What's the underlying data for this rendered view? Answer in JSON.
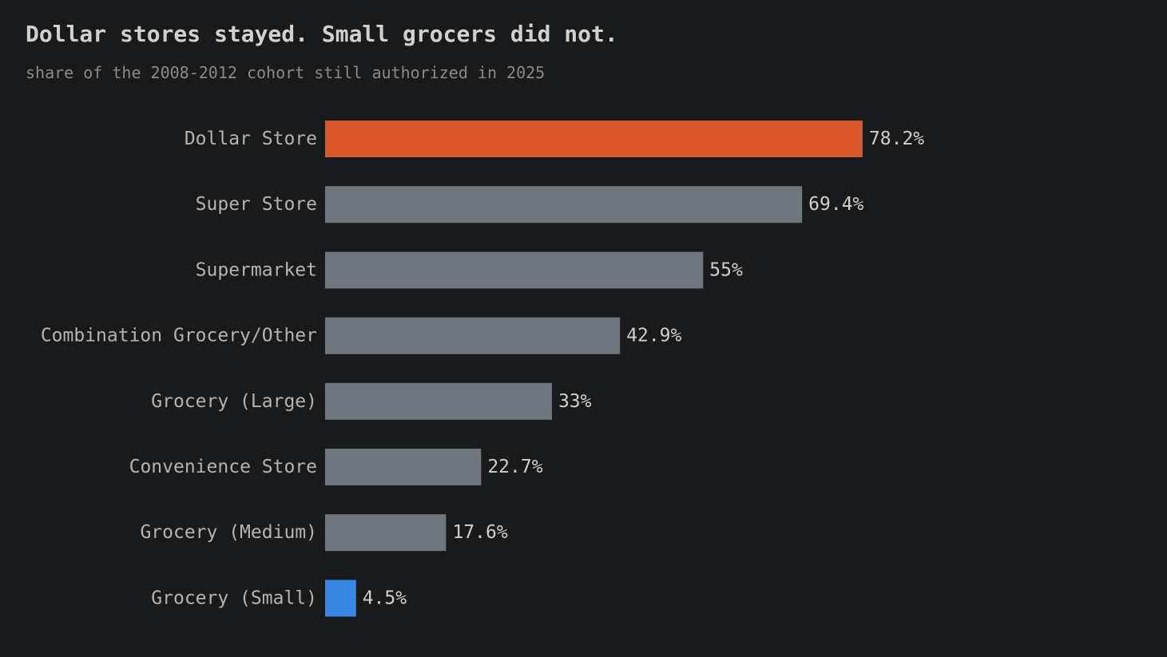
{
  "title": "Dollar stores stayed. Small grocers did not.",
  "subtitle": "share of the 2008-2012 cohort still authorized in 2025",
  "chart_data": {
    "type": "bar",
    "orientation": "horizontal",
    "title": "Dollar stores stayed. Small grocers did not.",
    "subtitle": "share of the 2008-2012 cohort still authorized in 2025",
    "categories": [
      "Dollar Store",
      "Super Store",
      "Supermarket",
      "Combination Grocery/Other",
      "Grocery (Large)",
      "Convenience Store",
      "Grocery (Medium)",
      "Grocery (Small)"
    ],
    "values": [
      78.2,
      69.4,
      55,
      42.9,
      33,
      22.7,
      17.6,
      4.5
    ],
    "value_labels": [
      "78.2%",
      "69.4%",
      "55%",
      "42.9%",
      "33%",
      "22.7%",
      "17.6%",
      "4.5%"
    ],
    "colors": [
      "#d9572a",
      "#70767e",
      "#70767e",
      "#70767e",
      "#70767e",
      "#70767e",
      "#70767e",
      "#3a88e6"
    ],
    "xlim": [
      0,
      100
    ],
    "grid": false,
    "legend": "none",
    "xlabel": "",
    "ylabel": ""
  }
}
